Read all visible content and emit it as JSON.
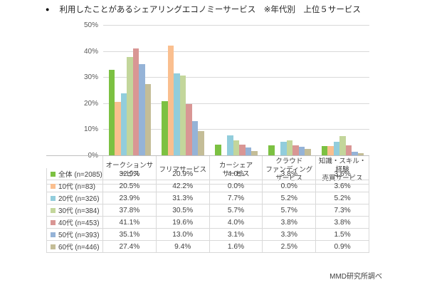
{
  "title": {
    "bullet": "●",
    "text": "利用したことがあるシェアリングエコノミーサービス　※年代別　上位５サービス"
  },
  "footer": {
    "source": "MMD研究所調べ"
  },
  "chart_data": {
    "type": "bar",
    "title": "利用したことがあるシェアリングエコノミーサービス ※年代別 上位5サービス",
    "categories": [
      "オークションサービス",
      "フリマサービス",
      "カーシェアサービス",
      "クラウドファンディングサービス",
      "知識・スキル・経験売買サービス"
    ],
    "series": [
      {
        "name": "全体 (n=2085)",
        "color": "#7cc142",
        "values": [
          32.9,
          20.9,
          4.0,
          3.8,
          3.6
        ]
      },
      {
        "name": "10代 (n=83)",
        "color": "#fabf8f",
        "values": [
          20.5,
          42.2,
          0.0,
          0.0,
          3.6
        ]
      },
      {
        "name": "20代 (n=326)",
        "color": "#92cddc",
        "values": [
          23.9,
          31.3,
          7.7,
          5.2,
          5.2
        ]
      },
      {
        "name": "30代 (n=384)",
        "color": "#c3d69b",
        "values": [
          37.8,
          30.5,
          5.7,
          5.7,
          7.3
        ]
      },
      {
        "name": "40代 (n=453)",
        "color": "#d99694",
        "values": [
          41.1,
          19.6,
          4.0,
          3.8,
          3.8
        ]
      },
      {
        "name": "50代 (n=393)",
        "color": "#95b3d7",
        "values": [
          35.1,
          13.0,
          3.1,
          3.3,
          1.5
        ]
      },
      {
        "name": "60代 (n=446)",
        "color": "#c4bd97",
        "values": [
          27.4,
          9.4,
          1.6,
          2.5,
          0.9
        ]
      }
    ],
    "ylim": [
      0,
      50
    ],
    "ytick_step": 10,
    "ytick_labels": [
      "0%",
      "10%",
      "20%",
      "30%",
      "40%",
      "50%"
    ],
    "grid": true,
    "legend_position": "data-table-left-column"
  },
  "table": {
    "columns": [
      "オークションサービス",
      "フリマサービス",
      "カーシェア\nサービス",
      "クラウド\nファンディング\nサービス",
      "知識・スキル・経験\n売買サービス"
    ],
    "rows": [
      {
        "label": "全体 (n=2085)",
        "marker_color": "#7cc142",
        "cells": [
          "32.9%",
          "20.9%",
          "4.0%",
          "3.8%",
          "3.6%"
        ]
      },
      {
        "label": "10代 (n=83)",
        "marker_color": "#fabf8f",
        "cells": [
          "20.5%",
          "42.2%",
          "0.0%",
          "0.0%",
          "3.6%"
        ]
      },
      {
        "label": "20代 (n=326)",
        "marker_color": "#92cddc",
        "cells": [
          "23.9%",
          "31.3%",
          "7.7%",
          "5.2%",
          "5.2%"
        ]
      },
      {
        "label": "30代 (n=384)",
        "marker_color": "#c3d69b",
        "cells": [
          "37.8%",
          "30.5%",
          "5.7%",
          "5.7%",
          "7.3%"
        ]
      },
      {
        "label": "40代 (n=453)",
        "marker_color": "#d99694",
        "cells": [
          "41.1%",
          "19.6%",
          "4.0%",
          "3.8%",
          "3.8%"
        ]
      },
      {
        "label": "50代 (n=393)",
        "marker_color": "#95b3d7",
        "cells": [
          "35.1%",
          "13.0%",
          "3.1%",
          "3.3%",
          "1.5%"
        ]
      },
      {
        "label": "60代 (n=446)",
        "marker_color": "#c4bd97",
        "cells": [
          "27.4%",
          "9.4%",
          "1.6%",
          "2.5%",
          "0.9%"
        ]
      }
    ]
  },
  "colors": {
    "gridline": "#d9d9d9",
    "axis": "#bfbfbf",
    "text": "#404040"
  }
}
